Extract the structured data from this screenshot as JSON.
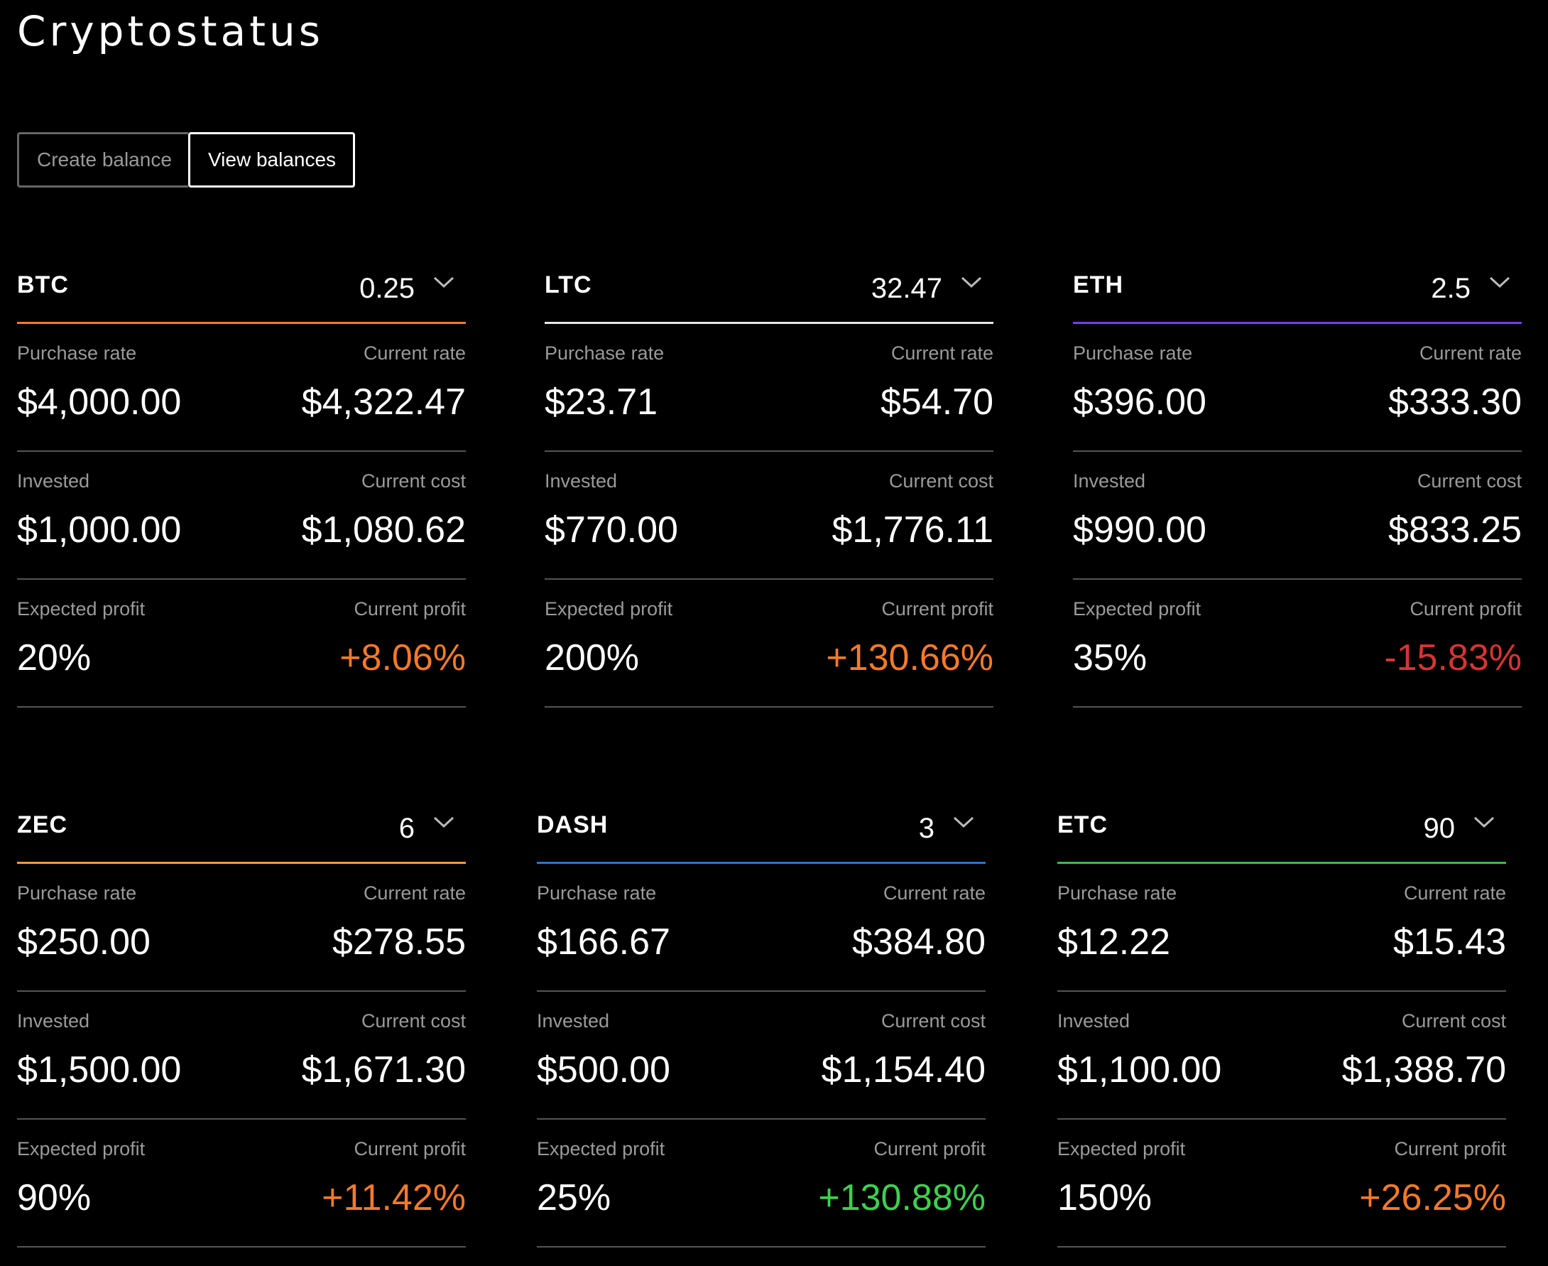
{
  "app": {
    "title": "Cryptostatus"
  },
  "tabs": [
    {
      "label": "Create balance",
      "active": false
    },
    {
      "label": "View balances",
      "active": true
    }
  ],
  "labels": {
    "purchase_rate": "Purchase rate",
    "current_rate": "Current rate",
    "invested": "Invested",
    "current_cost": "Current cost",
    "expected_profit": "Expected profit",
    "current_profit": "Current profit"
  },
  "colors": {
    "positive_orange": "#f47a2a",
    "positive_green": "#3dd04f",
    "negative_red": "#d63434"
  },
  "balances": [
    {
      "symbol": "BTC",
      "amount": "0.25",
      "accent": "#f47a2a",
      "purchase_rate": "$4,000.00",
      "current_rate": "$4,322.47",
      "invested": "$1,000.00",
      "current_cost": "$1,080.62",
      "expected_profit": "20%",
      "current_profit": "+8.06%",
      "profit_color": "#f47a2a"
    },
    {
      "symbol": "LTC",
      "amount": "32.47",
      "accent": "#e6e6e6",
      "purchase_rate": "$23.71",
      "current_rate": "$54.70",
      "invested": "$770.00",
      "current_cost": "$1,776.11",
      "expected_profit": "200%",
      "current_profit": "+130.66%",
      "profit_color": "#f47a2a"
    },
    {
      "symbol": "ETH",
      "amount": "2.5",
      "accent": "#7c3aed",
      "purchase_rate": "$396.00",
      "current_rate": "$333.30",
      "invested": "$990.00",
      "current_cost": "$833.25",
      "expected_profit": "35%",
      "current_profit": "-15.83%",
      "profit_color": "#d63434"
    },
    {
      "symbol": "ZEC",
      "amount": "6",
      "accent": "#f39a3a",
      "purchase_rate": "$250.00",
      "current_rate": "$278.55",
      "invested": "$1,500.00",
      "current_cost": "$1,671.30",
      "expected_profit": "90%",
      "current_profit": "+11.42%",
      "profit_color": "#f47a2a"
    },
    {
      "symbol": "DASH",
      "amount": "3",
      "accent": "#2f73c9",
      "purchase_rate": "$166.67",
      "current_rate": "$384.80",
      "invested": "$500.00",
      "current_cost": "$1,154.40",
      "expected_profit": "25%",
      "current_profit": "+130.88%",
      "profit_color": "#3dd04f"
    },
    {
      "symbol": "ETC",
      "amount": "90",
      "accent": "#3fb950",
      "purchase_rate": "$12.22",
      "current_rate": "$15.43",
      "invested": "$1,100.00",
      "current_cost": "$1,388.70",
      "expected_profit": "150%",
      "current_profit": "+26.25%",
      "profit_color": "#f47a2a"
    }
  ]
}
